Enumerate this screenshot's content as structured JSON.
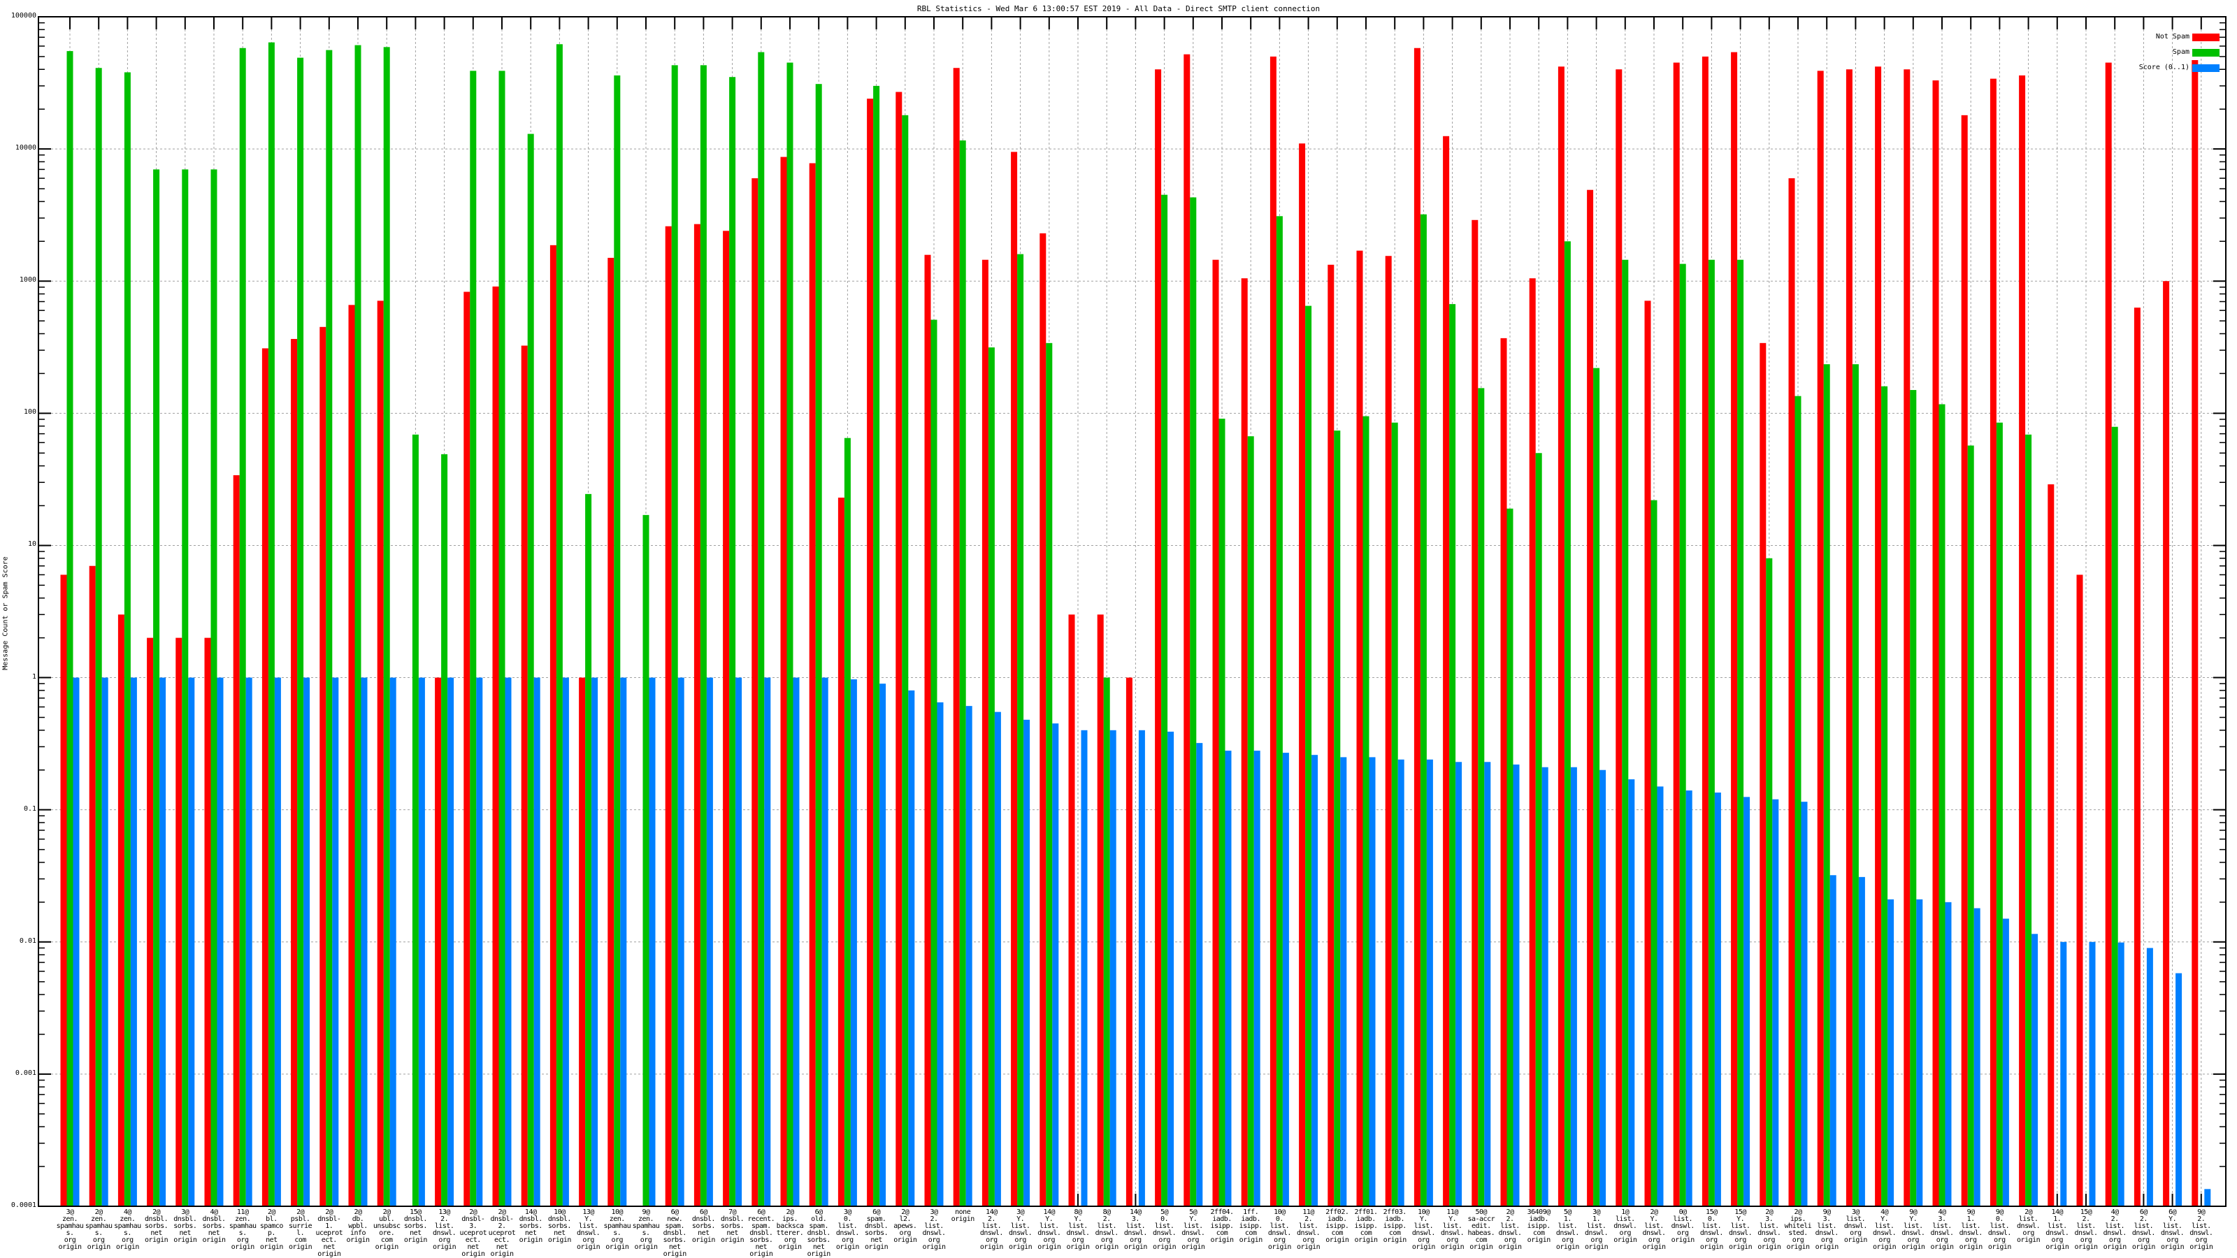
{
  "chart_data": {
    "type": "bar",
    "title": "RBL Statistics - Wed Mar  6 13:00:57 EST 2019 - All Data - Direct SMTP client connection",
    "xlabel": "",
    "ylabel": "Message Count or Spam Score",
    "yscale": "log",
    "ylim": [
      0.0001,
      100000
    ],
    "yticks": [
      "0.0001",
      "0.001",
      "0.01",
      "0.1",
      "1",
      "10",
      "100",
      "1000",
      "10000",
      "100000"
    ],
    "grid": true,
    "legend_position": "top-right",
    "colors": {
      "not_spam": "#ff0000",
      "spam": "#00c000",
      "score": "#0080ff"
    },
    "categories": [
      "3@\nzen.\nspamhaus.\norg\norigin",
      "2@\nzen.\nspamhaus.\norg\norigin",
      "4@\nzen.\nspamhaus.\norg\norigin",
      "2@\ndnsbl.\nsorbs.\nnet\norigin",
      "3@\ndnsbl.\nsorbs.\nnet\norigin",
      "4@\ndnsbl.\nsorbs.\nnet\norigin",
      "11@\nzen.\nspamhaus.\norg\norigin",
      "2@\nbl.\nspamcop.\nnet\norigin",
      "2@\npsbl.\nsurriel.\ncom\norigin",
      "2@\ndnsbl-1.\nuceprotect.\nnet\norigin",
      "2@\ndb.\nwpbl.\ninfo\norigin",
      "2@\nubl.\nunsubscore.\ncom\norigin",
      "15@\ndnsbl.\nsorbs.\nnet\norigin",
      "13@\n2.\nlist.\ndnswl.\norg\norigin",
      "2@\ndnsbl-3.\nuceprotect.\nnet\norigin",
      "2@\ndnsbl-2.\nuceprotect.\nnet\norigin",
      "14@\ndnsbl.\nsorbs.\nnet\norigin",
      "10@\ndnsbl.\nsorbs.\nnet\norigin",
      "13@\nY.\nlist.\ndnswl.\norg\norigin",
      "10@\nzen.\nspamhaus.\norg\norigin",
      "9@\nzen.\nspamhaus.\norg\norigin",
      "6@\nnew.\nspam.\ndnsbl.\nsorbs.\nnet\norigin",
      "6@\ndnsbl.\nsorbs.\nnet\norigin",
      "7@\ndnsbl.\nsorbs.\nnet\norigin",
      "6@\nrecent.\nspam.\ndnsbl.\nsorbs.\nnet\norigin",
      "2@\nips.\nbackscatterer.\norg\norigin",
      "6@\nold.\nspam.\ndnsbl.\nsorbs.\nnet\norigin",
      "3@\n0.\nlist.\ndnswl.\norg\norigin",
      "6@\nspam.\ndnsbl.\nsorbs.\nnet\norigin",
      "2@\nl2.\napews.\norg\norigin",
      "3@\n2.\nlist.\ndnswl.\norg\norigin",
      "none\norigin",
      "14@\n2.\nlist.\ndnswl.\norg\norigin",
      "3@\nY.\nlist.\ndnswl.\norg\norigin",
      "14@\nY.\nlist.\ndnswl.\norg\norigin",
      "8@\nY.\nlist.\ndnswl.\norg\norigin",
      "8@\n2.\nlist.\ndnswl.\norg\norigin",
      "14@\n3.\nlist.\ndnswl.\norg\norigin",
      "5@\n0.\nlist.\ndnswl.\norg\norigin",
      "5@\nY.\nlist.\ndnswl.\norg\norigin",
      "2ff04.\niadb.\nisipp.\ncom\norigin",
      "1ff.\niadb.\nisipp.\ncom\norigin",
      "10@\n0.\nlist.\ndnswl.\norg\norigin",
      "11@\n2.\nlist.\ndnswl.\norg\norigin",
      "2ff02.\niadb.\nisipp.\ncom\norigin",
      "2ff01.\niadb.\nisipp.\ncom\norigin",
      "2ff03.\niadb.\nisipp.\ncom\norigin",
      "10@\nY.\nlist.\ndnswl.\norg\norigin",
      "11@\nY.\nlist.\ndnswl.\norg\norigin",
      "50@\nsa-accredit.\nhabeas.\ncom\norigin",
      "2@\n2.\nlist.\ndnswl.\norg\norigin",
      "36409@\niadb.\nisipp.\ncom\norigin",
      "5@\n1.\nlist.\ndnswl.\norg\norigin",
      "3@\n1.\nlist.\ndnswl.\norg\norigin",
      "1@\nlist.\ndnswl.\norg\norigin",
      "2@\nY.\nlist.\ndnswl.\norg\norigin",
      "0@\nlist.\ndnswl.\norg\norigin",
      "15@\n0.\nlist.\ndnswl.\norg\norigin",
      "15@\nY.\nlist.\ndnswl.\norg\norigin",
      "2@\n3.\nlist.\ndnswl.\norg\norigin",
      "2@\nips.\nwhitelisted.\norg\norigin",
      "9@\n3.\nlist.\ndnswl.\norg\norigin",
      "3@\nlist.\ndnswl.\norg\norigin",
      "4@\nY.\nlist.\ndnswl.\norg\norigin",
      "9@\nY.\nlist.\ndnswl.\norg\norigin",
      "4@\n3.\nlist.\ndnswl.\norg\norigin",
      "9@\n1.\nlist.\ndnswl.\norg\norigin",
      "9@\n0.\nlist.\ndnswl.\norg\norigin",
      "2@\nlist.\ndnswl.\norg\norigin",
      "14@\n1.\nlist.\ndnswl.\norg\norigin",
      "15@\n2.\nlist.\ndnswl.\norg\norigin",
      "4@\n2.\nlist.\ndnswl.\norg\norigin",
      "6@\n2.\nlist.\ndnswl.\norg\norigin",
      "6@\nY.\nlist.\ndnswl.\norg\norigin",
      "9@\n2.\nlist.\ndnswl.\norg\norigin"
    ],
    "series": [
      {
        "name": "Not Spam",
        "values": [
          6,
          7,
          3,
          2,
          2,
          2,
          34,
          310,
          365,
          450,
          660,
          710,
          null,
          1,
          830,
          910,
          325,
          1870,
          1,
          1500,
          null,
          2600,
          2700,
          2400,
          6000,
          8700,
          7800,
          23,
          24000,
          27000,
          1580,
          41000,
          1450,
          9500,
          2300,
          3,
          3,
          1,
          40000,
          52000,
          1450,
          1050,
          50000,
          11000,
          1330,
          1700,
          1550,
          58000,
          12500,
          2900,
          370,
          1050,
          42000,
          4900,
          40000,
          710,
          45000,
          50000,
          54000,
          340,
          6000,
          39000,
          40000,
          42000,
          40000,
          33000,
          18000,
          34000,
          36000,
          29,
          6,
          45000,
          630,
          1000,
          47000
        ]
      },
      {
        "name": "Spam",
        "values": [
          55000,
          41000,
          38000,
          7000,
          7000,
          7000,
          58000,
          64000,
          49000,
          56000,
          61000,
          59000,
          69,
          49,
          39000,
          39000,
          13000,
          62000,
          24.5,
          36000,
          17,
          43000,
          43000,
          35000,
          54000,
          45000,
          31000,
          65,
          30000,
          18000,
          510,
          11600,
          315,
          1600,
          340,
          null,
          1,
          null,
          4500,
          4300,
          91,
          67,
          3100,
          650,
          74,
          95,
          85,
          3200,
          670,
          155,
          19,
          50,
          2000,
          220,
          1450,
          22,
          1350,
          1450,
          1450,
          8,
          135,
          235,
          235,
          160,
          150,
          117,
          57,
          85,
          69,
          null,
          null,
          79,
          null,
          null,
          null
        ]
      },
      {
        "name": "Score (0..1)",
        "values": [
          1,
          1,
          1,
          1,
          1,
          1,
          1,
          1,
          1,
          1,
          1,
          1,
          1,
          1,
          1,
          1,
          1,
          1,
          1,
          1,
          1,
          1,
          1,
          1,
          1,
          1,
          1,
          0.97,
          0.9,
          0.8,
          0.65,
          0.61,
          0.55,
          0.48,
          0.45,
          0.4,
          0.4,
          0.4,
          0.39,
          0.32,
          0.28,
          0.28,
          0.27,
          0.26,
          0.25,
          0.25,
          0.24,
          0.24,
          0.23,
          0.23,
          0.22,
          0.21,
          0.21,
          0.2,
          0.17,
          0.15,
          0.14,
          0.135,
          0.125,
          0.12,
          0.115,
          0.032,
          0.031,
          0.021,
          0.021,
          0.02,
          0.018,
          0.015,
          0.0115,
          0.01,
          0.01,
          0.0099,
          0.009,
          0.0058,
          0.000135
        ]
      }
    ]
  }
}
